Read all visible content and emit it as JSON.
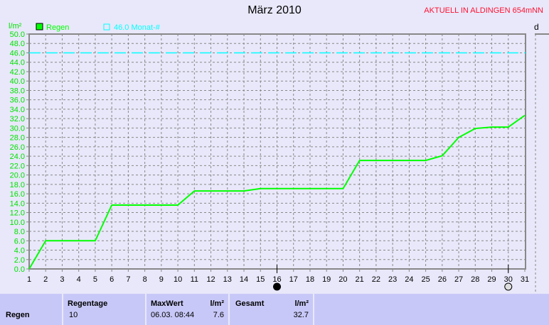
{
  "title": "März 2010",
  "station": "AKTUELL IN ALDINGEN 654mNN",
  "right_panel_label": "d",
  "chart_data": {
    "type": "line",
    "ylabel": "l/m²",
    "ylim": [
      0,
      50
    ],
    "ytick_step": 2,
    "x": [
      1,
      2,
      3,
      4,
      5,
      6,
      7,
      8,
      9,
      10,
      11,
      12,
      13,
      14,
      15,
      16,
      17,
      18,
      19,
      20,
      21,
      22,
      23,
      24,
      25,
      26,
      27,
      28,
      29,
      30,
      31
    ],
    "grid": true,
    "legend_placement": "top-left",
    "series": [
      {
        "name": "Regen",
        "color": "#00ff00",
        "values": [
          0,
          6.0,
          6.0,
          6.0,
          6.0,
          13.6,
          13.6,
          13.6,
          13.6,
          13.6,
          16.6,
          16.6,
          16.6,
          16.6,
          17.1,
          17.1,
          17.1,
          17.1,
          17.1,
          17.1,
          23.1,
          23.1,
          23.1,
          23.1,
          23.1,
          24.1,
          28.0,
          29.9,
          30.2,
          30.2,
          32.7
        ]
      }
    ],
    "reference_line": {
      "label": "46.0 Monat-#",
      "value": 46.0,
      "color": "#00ffff"
    },
    "moon_markers": [
      {
        "day": 16,
        "phase": "new-moon"
      },
      {
        "day": 30,
        "phase": "full-moon"
      }
    ]
  },
  "stats": {
    "row_label": "Regen",
    "regentage_label": "Regentage",
    "regentage_value": "10",
    "maxwert_label": "MaxWert",
    "maxwert_unit": "l/m²",
    "maxwert_date": "06.03.  08:44",
    "maxwert_value": "7.6",
    "gesamt_label": "Gesamt",
    "gesamt_unit": "l/m²",
    "gesamt_value": "32.7"
  }
}
